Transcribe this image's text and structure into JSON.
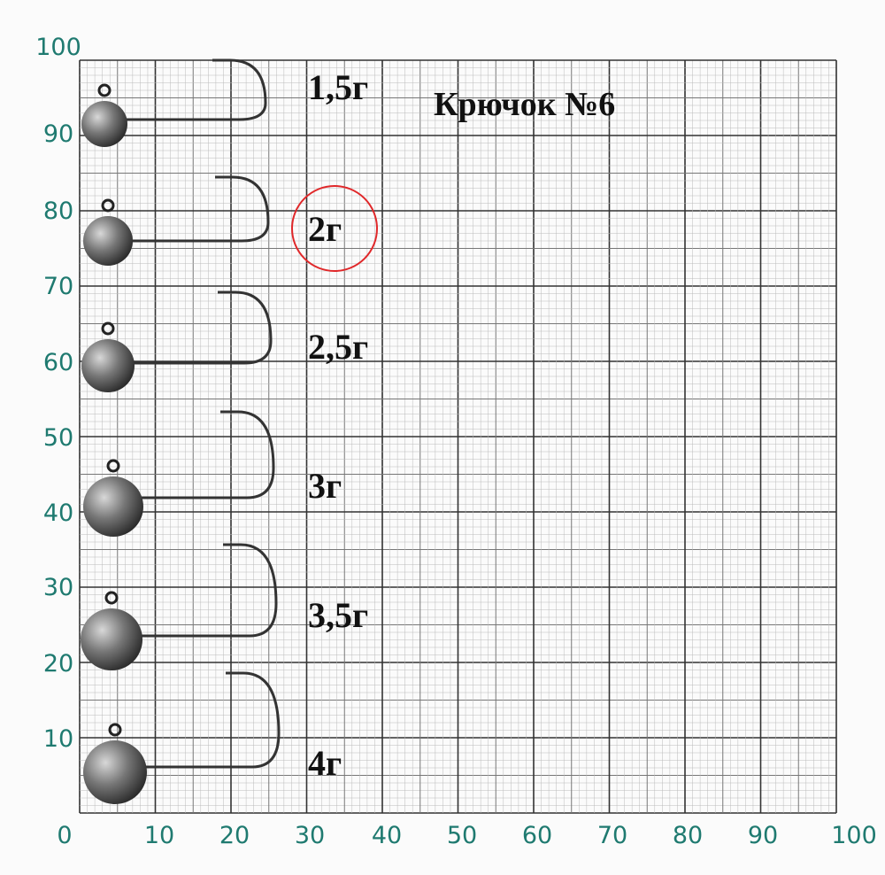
{
  "title": "Крючок №6",
  "x_axis_labels": [
    0,
    10,
    20,
    30,
    40,
    50,
    60,
    70,
    80,
    90,
    100
  ],
  "y_axis_labels": [
    10,
    20,
    30,
    40,
    50,
    60,
    70,
    80,
    90,
    100
  ],
  "items": [
    {
      "label": "1,5г"
    },
    {
      "label": "2г",
      "highlighted": true
    },
    {
      "label": "2,5г"
    },
    {
      "label": "3г"
    },
    {
      "label": "3,5г"
    },
    {
      "label": "4г"
    }
  ]
}
